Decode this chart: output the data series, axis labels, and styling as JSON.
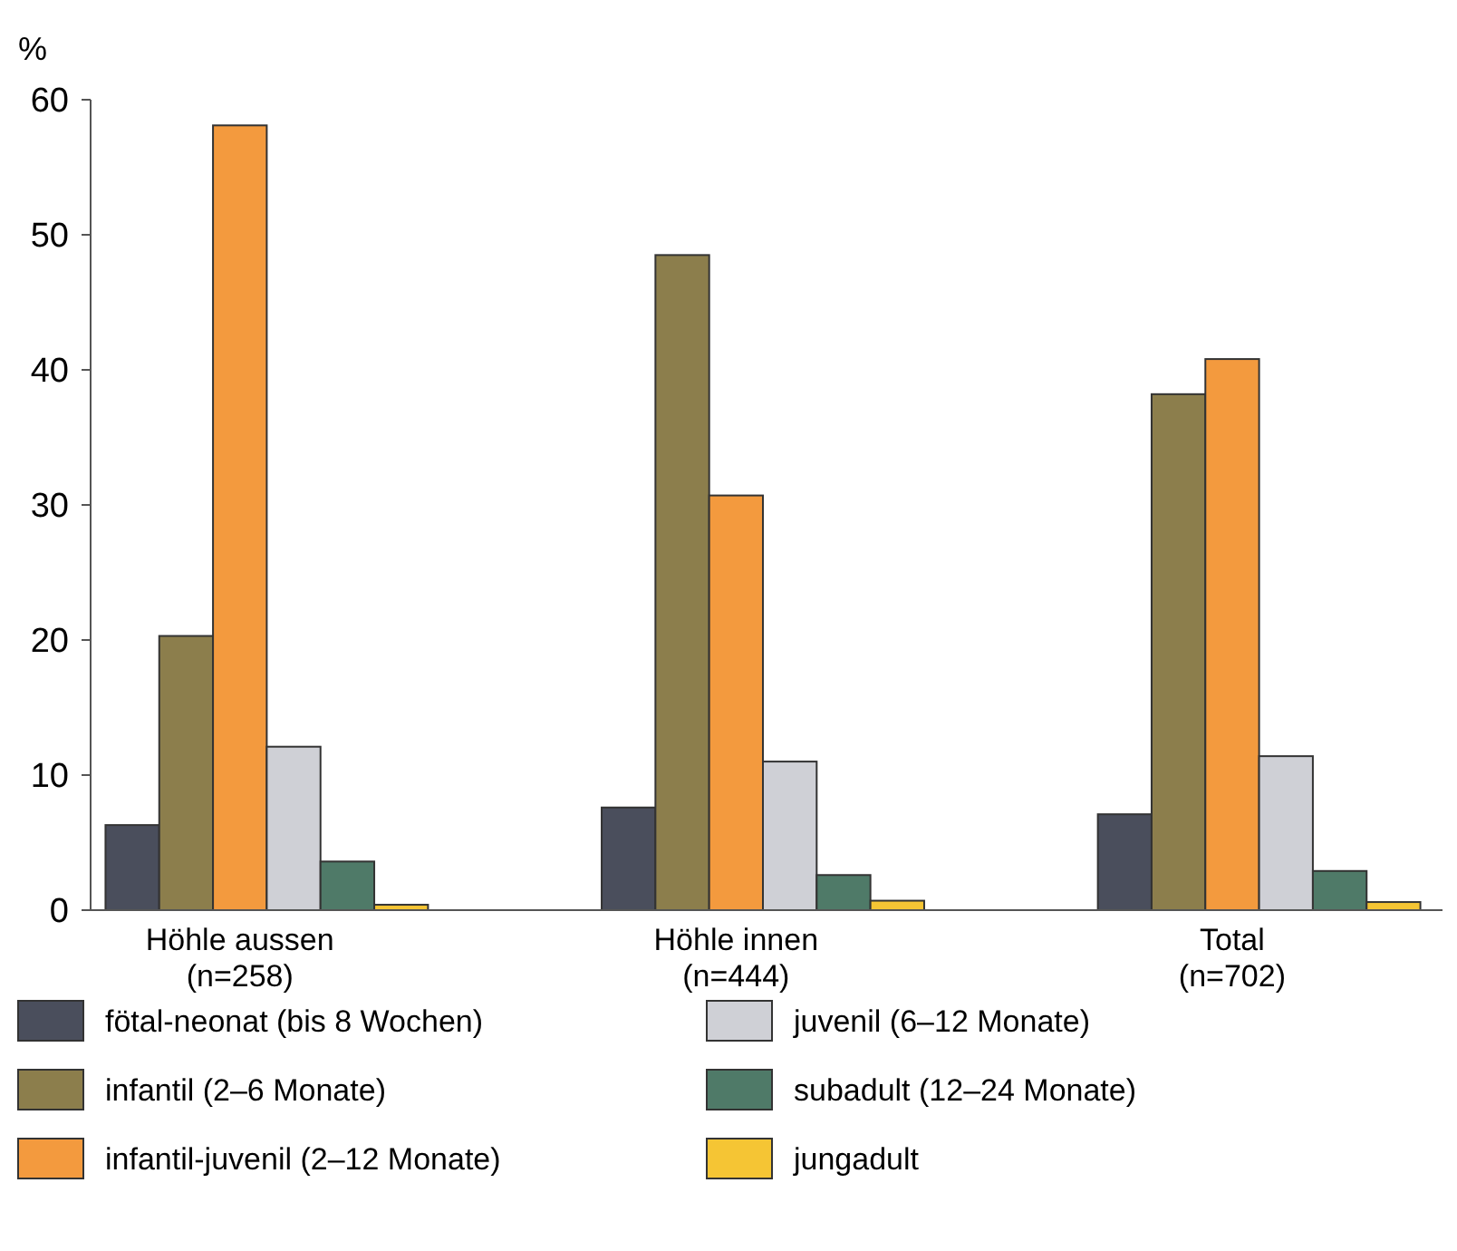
{
  "chart_data": {
    "type": "bar",
    "ylabel": "%",
    "categories": [
      "Höhle aussen\n(n=258)",
      "Höhle innen\n(n=444)",
      "Total\n(n=702)"
    ],
    "series": [
      {
        "name": "fötal-neonat (bis 8 Wochen)",
        "color": "#4a4e5c",
        "values": [
          6.3,
          7.6,
          7.1
        ]
      },
      {
        "name": "infantil (2–6 Monate)",
        "color": "#8c7e4c",
        "values": [
          20.3,
          48.5,
          38.2
        ]
      },
      {
        "name": "infantil-juvenil (2–12 Monate)",
        "color": "#f39a3e",
        "values": [
          58.1,
          30.7,
          40.8
        ]
      },
      {
        "name": "juvenil (6–12 Monate)",
        "color": "#cfd0d6",
        "values": [
          12.1,
          11.0,
          11.4
        ]
      },
      {
        "name": "subadult (12–24 Monate)",
        "color": "#4f7a68",
        "values": [
          3.6,
          2.6,
          2.9
        ]
      },
      {
        "name": "jungadult",
        "color": "#f5c534",
        "values": [
          0.4,
          0.7,
          0.6
        ]
      }
    ],
    "ylim": [
      0,
      60
    ],
    "yticks": [
      0,
      10,
      20,
      30,
      40,
      50,
      60
    ],
    "legend": "bottom"
  }
}
